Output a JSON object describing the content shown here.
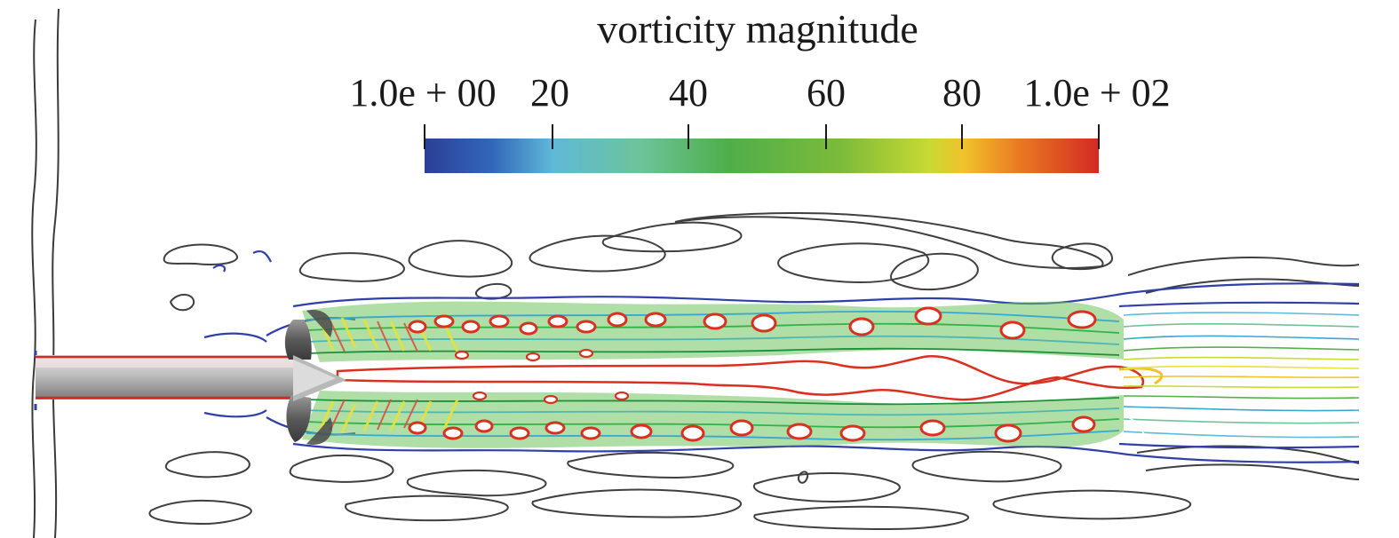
{
  "colorbar": {
    "title": "vorticity magnitude",
    "tick_labels": [
      "1.0e + 00",
      "20",
      "40",
      "60",
      "80",
      "1.0e + 02"
    ],
    "tick_values": [
      1,
      20,
      40,
      60,
      80,
      100
    ],
    "range": [
      1,
      100
    ],
    "colormap": "jet/rainbow",
    "colors": [
      "#2b3f98",
      "#3a78c9",
      "#5fb9d8",
      "#6cc49a",
      "#57b04a",
      "#7dbb3a",
      "#c9d934",
      "#f0c22a",
      "#ea7b22",
      "#d32a23"
    ]
  }
}
